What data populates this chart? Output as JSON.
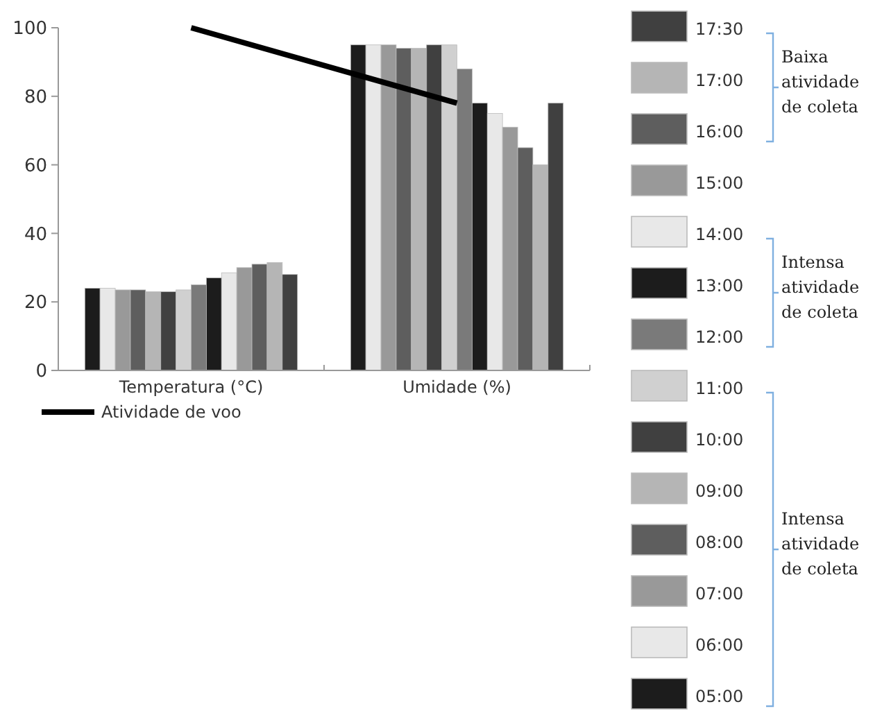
{
  "chart_data": {
    "type": "bar",
    "categories": [
      "Temperatura (°C)",
      "Umidade (%)"
    ],
    "ylim": [
      0,
      100
    ],
    "yticks": [
      0,
      20,
      40,
      60,
      80,
      100
    ],
    "legend": "right",
    "series": [
      {
        "name": "05:00",
        "color": "#1c1c1c",
        "values": [
          24,
          95
        ]
      },
      {
        "name": "06:00",
        "color": "#e8e8e8",
        "values": [
          24,
          95
        ]
      },
      {
        "name": "07:00",
        "color": "#999999",
        "values": [
          23.5,
          95
        ]
      },
      {
        "name": "08:00",
        "color": "#5e5e5e",
        "values": [
          23.5,
          94
        ]
      },
      {
        "name": "09:00",
        "color": "#b5b5b5",
        "values": [
          23,
          94
        ]
      },
      {
        "name": "10:00",
        "color": "#404040",
        "values": [
          23,
          95
        ]
      },
      {
        "name": "11:00",
        "color": "#d0d0d0",
        "values": [
          23.5,
          95
        ]
      },
      {
        "name": "12:00",
        "color": "#7a7a7a",
        "values": [
          25,
          88
        ]
      },
      {
        "name": "13:00",
        "color": "#1c1c1c",
        "values": [
          27,
          78
        ]
      },
      {
        "name": "14:00",
        "color": "#e8e8e8",
        "values": [
          28.5,
          75
        ]
      },
      {
        "name": "15:00",
        "color": "#999999",
        "values": [
          30,
          71
        ]
      },
      {
        "name": "16:00",
        "color": "#5e5e5e",
        "values": [
          31,
          65
        ]
      },
      {
        "name": "17:00",
        "color": "#b5b5b5",
        "values": [
          31.5,
          60
        ]
      },
      {
        "name": "17:30",
        "color": "#404040",
        "values": [
          28,
          78
        ]
      },
      {
        "name": "Atividade de voo",
        "type": "line",
        "color": "#000000",
        "values": [
          100,
          78
        ]
      }
    ],
    "annotations": [
      "Baixa atividade de coleta",
      "Intensa atividade de coleta",
      "Intensa atividade de coleta"
    ]
  }
}
